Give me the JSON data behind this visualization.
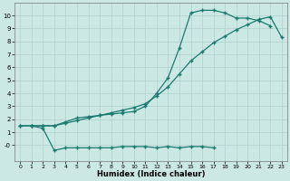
{
  "xlabel": "Humidex (Indice chaleur)",
  "background_color": "#cce8e4",
  "grid_color": "#aed0cc",
  "line_color": "#1a7a6e",
  "xlim": [
    -0.5,
    23.5
  ],
  "ylim": [
    -1.2,
    11.0
  ],
  "xticks": [
    0,
    1,
    2,
    3,
    4,
    5,
    6,
    7,
    8,
    9,
    10,
    11,
    12,
    13,
    14,
    15,
    16,
    17,
    18,
    19,
    20,
    21,
    22,
    23
  ],
  "yticks": [
    0,
    1,
    2,
    3,
    4,
    5,
    6,
    7,
    8,
    9,
    10
  ],
  "ytick_labels": [
    "-0",
    "1",
    "2",
    "3",
    "4",
    "5",
    "6",
    "7",
    "8",
    "9",
    "10"
  ],
  "line1_x": [
    0,
    1,
    2,
    3,
    4,
    5,
    6,
    7,
    8,
    9,
    10,
    11,
    12,
    13,
    14,
    15,
    16,
    17,
    18,
    19,
    20,
    21,
    22,
    23
  ],
  "line1_y": [
    1.5,
    1.5,
    1.5,
    1.5,
    1.7,
    1.9,
    2.1,
    2.3,
    2.5,
    2.7,
    2.9,
    3.2,
    3.8,
    4.5,
    5.5,
    6.5,
    7.2,
    7.9,
    8.4,
    8.9,
    9.3,
    9.7,
    9.9,
    8.3
  ],
  "line2_x": [
    0,
    1,
    2,
    3,
    4,
    5,
    6,
    7,
    8,
    9,
    10,
    11,
    12,
    13,
    14,
    15,
    16,
    17,
    18,
    19,
    20,
    21,
    22
  ],
  "line2_y": [
    1.5,
    1.5,
    1.5,
    1.5,
    1.8,
    2.1,
    2.2,
    2.3,
    2.4,
    2.5,
    2.6,
    3.0,
    4.0,
    5.2,
    7.5,
    10.2,
    10.4,
    10.4,
    10.2,
    9.8,
    9.8,
    9.6,
    9.2
  ],
  "line3_x": [
    1,
    2,
    3,
    4,
    5,
    6,
    7,
    8,
    9,
    10,
    11,
    12,
    13,
    14,
    15,
    16,
    17
  ],
  "line3_y": [
    1.5,
    1.3,
    -0.4,
    -0.2,
    -0.2,
    -0.2,
    -0.2,
    -0.2,
    -0.1,
    -0.1,
    -0.1,
    -0.2,
    -0.1,
    -0.2,
    -0.1,
    -0.1,
    -0.2
  ]
}
